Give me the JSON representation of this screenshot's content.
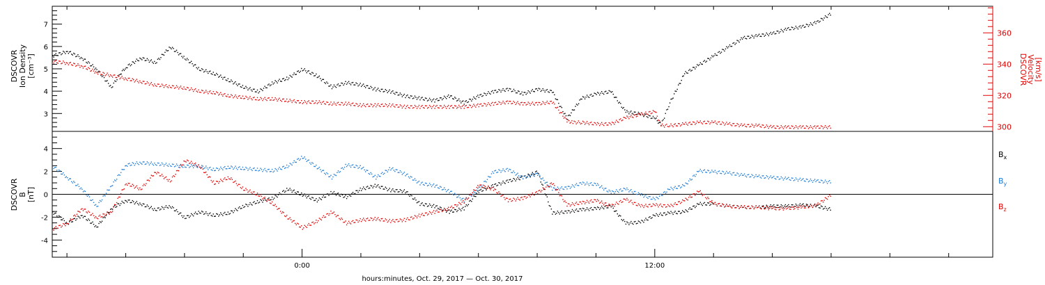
{
  "chart_data": [
    {
      "type": "scatter",
      "panel": "plasma",
      "ylabel_left": [
        "DSCOVR",
        "Ion Density",
        "[cm⁻³]"
      ],
      "ylabel_right": [
        "DSCOVR",
        "Velocity",
        "[km/s]"
      ],
      "ylim_left": [
        2.2,
        7.8
      ],
      "ylim_right": [
        297,
        377
      ],
      "yticks_left": [
        "3",
        "4",
        "5",
        "6",
        "7"
      ],
      "yticks_right": [
        "300",
        "320",
        "340",
        "360"
      ],
      "x_hours": [
        -8,
        10.5
      ],
      "series": [
        {
          "color": "#000000",
          "axis": "left",
          "x": [
            -8.5,
            -8.0,
            -7.5,
            -7.0,
            -6.5,
            -6.2,
            -6.0,
            -5.5,
            -5.0,
            -4.5,
            -4.0,
            -3.5,
            -3.0,
            -2.5,
            -2.0,
            -1.5,
            -1.0,
            -0.5,
            0.0,
            0.5,
            1.0,
            1.5,
            2.0,
            2.5,
            3.0,
            3.5,
            4.0,
            4.5,
            5.0,
            5.5,
            6.0,
            6.5,
            7.0,
            7.3,
            7.5,
            8.0,
            8.5,
            9.0,
            9.5,
            10.0,
            10.5,
            11.0,
            11.5,
            12.0,
            12.2,
            12.5,
            13.0,
            13.5,
            14.0,
            14.5,
            15.0,
            15.5,
            16.0,
            16.5,
            17.0,
            17.5,
            18.0
          ],
          "y": [
            5.6,
            5.8,
            5.5,
            5.0,
            4.2,
            4.8,
            5.1,
            5.5,
            5.3,
            6.0,
            5.5,
            5.0,
            4.8,
            4.5,
            4.2,
            4.0,
            4.4,
            4.6,
            5.0,
            4.7,
            4.2,
            4.4,
            4.3,
            4.1,
            4.0,
            3.8,
            3.7,
            3.6,
            3.8,
            3.5,
            3.8,
            4.0,
            4.1,
            4.0,
            3.9,
            4.1,
            4.0,
            2.8,
            3.7,
            3.9,
            4.0,
            3.1,
            3.0,
            2.8,
            2.5,
            3.5,
            4.8,
            5.2,
            5.6,
            6.0,
            6.4,
            6.5,
            6.6,
            6.8,
            6.9,
            7.1,
            7.5
          ]
        },
        {
          "color": "#e00000",
          "axis": "right",
          "x": [
            -8.5,
            -8.0,
            -7.5,
            -7.0,
            -6.5,
            -6.0,
            -5.5,
            -5.0,
            -4.5,
            -4.0,
            -3.5,
            -3.0,
            -2.5,
            -2.0,
            -1.5,
            -1.0,
            -0.5,
            0.0,
            0.5,
            1.0,
            1.5,
            2.0,
            2.5,
            3.0,
            3.5,
            4.0,
            4.5,
            5.0,
            5.5,
            6.0,
            6.5,
            7.0,
            7.5,
            8.0,
            8.5,
            9.0,
            9.2,
            9.5,
            10.0,
            10.5,
            11.0,
            11.5,
            12.0,
            12.2,
            12.5,
            13.0,
            13.5,
            14.0,
            14.5,
            15.0,
            15.5,
            16.0,
            16.5,
            17.0,
            17.5,
            18.0
          ],
          "y": [
            342,
            341,
            339,
            335,
            333,
            331,
            329,
            327,
            326,
            325,
            323,
            322,
            320,
            319,
            318,
            318,
            317,
            316,
            316,
            315,
            315,
            314,
            314,
            314,
            313,
            313,
            313,
            313,
            313,
            314,
            315,
            316,
            315,
            315,
            316,
            304,
            303,
            303,
            302,
            302,
            306,
            308,
            310,
            301,
            301,
            302,
            303,
            303,
            302,
            301,
            301,
            300,
            300,
            300,
            300,
            300
          ]
        }
      ]
    },
    {
      "type": "scatter",
      "panel": "magnetic field",
      "ylabel": [
        "DSCOVR",
        "B",
        "[nT]"
      ],
      "ylim": [
        -5.5,
        5.5
      ],
      "yticks": [
        "-4",
        "-2",
        "0",
        "2",
        "4"
      ],
      "xlim_hours": [
        -8.5,
        23.5
      ],
      "xticks": [
        {
          "hour": 0,
          "label": "0:00"
        },
        {
          "hour": 12,
          "label": "12:00"
        }
      ],
      "xlabel": "hours:minutes, Oct. 29, 2017 — Oct. 30, 2017",
      "series": [
        {
          "name": "Bx",
          "color": "#000000",
          "x": [
            -8.5,
            -8.0,
            -7.5,
            -7.0,
            -6.5,
            -6.0,
            -5.5,
            -5.0,
            -4.5,
            -4.0,
            -3.5,
            -3.0,
            -2.5,
            -2.0,
            -1.5,
            -1.0,
            -0.5,
            0.0,
            0.5,
            1.0,
            1.5,
            2.0,
            2.5,
            3.0,
            3.5,
            4.0,
            4.5,
            5.0,
            5.5,
            6.0,
            6.5,
            7.0,
            7.5,
            8.0,
            8.5,
            9.0,
            9.5,
            10.0,
            10.5,
            11.0,
            11.5,
            12.0,
            12.5,
            13.0,
            13.5,
            14.0,
            14.5,
            15.0,
            15.5,
            16.0,
            16.5,
            17.0,
            17.5,
            18.0
          ],
          "y": [
            -1.5,
            -2.5,
            -1.8,
            -2.8,
            -1.2,
            -0.5,
            -0.8,
            -1.3,
            -1.0,
            -2.0,
            -1.5,
            -1.8,
            -1.6,
            -1.0,
            -0.6,
            -0.3,
            0.5,
            0.0,
            -0.5,
            0.2,
            -0.2,
            0.5,
            0.8,
            0.4,
            0.3,
            -0.8,
            -1.0,
            -1.5,
            -1.2,
            0.3,
            0.8,
            1.2,
            1.5,
            2.0,
            -1.6,
            -1.5,
            -1.3,
            -1.2,
            -1.0,
            -2.5,
            -2.4,
            -1.8,
            -1.6,
            -1.5,
            -0.8,
            -0.8,
            -1.0,
            -1.1,
            -1.1,
            -1.0,
            -1.0,
            -0.9,
            -1.0,
            -1.3
          ]
        },
        {
          "name": "By",
          "color": "#1a7ad4",
          "x": [
            -8.5,
            -8.0,
            -7.5,
            -7.0,
            -6.5,
            -6.0,
            -5.5,
            -5.0,
            -4.5,
            -4.0,
            -3.5,
            -3.0,
            -2.5,
            -2.0,
            -1.5,
            -1.0,
            -0.5,
            0.0,
            0.5,
            1.0,
            1.5,
            2.0,
            2.5,
            3.0,
            3.5,
            4.0,
            4.5,
            5.0,
            5.5,
            6.0,
            6.5,
            7.0,
            7.5,
            8.0,
            8.5,
            9.0,
            9.5,
            10.0,
            10.5,
            11.0,
            11.5,
            12.0,
            12.5,
            13.0,
            13.5,
            14.0,
            14.5,
            15.0,
            15.5,
            16.0,
            16.5,
            17.0,
            17.5,
            18.0
          ],
          "y": [
            2.5,
            1.5,
            0.5,
            -1.0,
            0.8,
            2.6,
            2.8,
            2.7,
            2.6,
            2.5,
            2.5,
            2.2,
            2.4,
            2.3,
            2.2,
            2.1,
            2.5,
            3.3,
            2.4,
            1.5,
            2.6,
            2.4,
            1.5,
            2.3,
            1.8,
            1.0,
            0.8,
            0.3,
            -0.5,
            0.5,
            2.0,
            2.2,
            1.5,
            1.8,
            0.5,
            0.6,
            1.0,
            0.9,
            0.2,
            0.5,
            0.0,
            -0.4,
            0.5,
            0.8,
            2.1,
            2.0,
            1.9,
            1.7,
            1.6,
            1.5,
            1.4,
            1.3,
            1.2,
            1.1
          ]
        },
        {
          "name": "Bz",
          "color": "#e00000",
          "x": [
            -8.5,
            -8.0,
            -7.5,
            -7.0,
            -6.5,
            -6.0,
            -5.5,
            -5.0,
            -4.5,
            -4.0,
            -3.5,
            -3.0,
            -2.5,
            -2.0,
            -1.5,
            -1.0,
            -0.5,
            0.0,
            0.5,
            1.0,
            1.5,
            2.0,
            2.5,
            3.0,
            3.5,
            4.0,
            4.5,
            5.0,
            5.5,
            6.0,
            6.5,
            7.0,
            7.5,
            8.0,
            8.5,
            9.0,
            9.5,
            10.0,
            10.5,
            11.0,
            11.5,
            12.0,
            12.5,
            13.0,
            13.5,
            14.0,
            14.5,
            15.0,
            15.5,
            16.0,
            16.5,
            17.0,
            17.5,
            18.0
          ],
          "y": [
            -3.0,
            -2.5,
            -1.2,
            -2.0,
            -1.5,
            1.0,
            0.5,
            2.0,
            1.2,
            3.0,
            2.5,
            1.0,
            1.5,
            0.5,
            0.0,
            -0.8,
            -2.0,
            -2.9,
            -2.3,
            -1.5,
            -2.5,
            -2.2,
            -2.1,
            -2.3,
            -2.2,
            -1.8,
            -1.5,
            -1.2,
            -0.6,
            0.8,
            0.5,
            -0.5,
            -0.3,
            0.2,
            1.0,
            -0.9,
            -0.7,
            -0.5,
            -1.0,
            -0.4,
            -1.0,
            -0.9,
            -1.0,
            -0.5,
            0.3,
            -0.8,
            -1.0,
            -1.1,
            -1.1,
            -1.2,
            -1.2,
            -1.1,
            -0.9,
            0.0
          ]
        }
      ],
      "legend": [
        "Bx",
        "By",
        "Bz"
      ],
      "legend_position": "right"
    }
  ],
  "legend_labels": {
    "bx": "B",
    "bx_sub": "x",
    "by": "B",
    "by_sub": "y",
    "bz": "B",
    "bz_sub": "z"
  },
  "colors": {
    "black": "#000000",
    "red": "#e00000",
    "blue": "#1a7ad4"
  }
}
